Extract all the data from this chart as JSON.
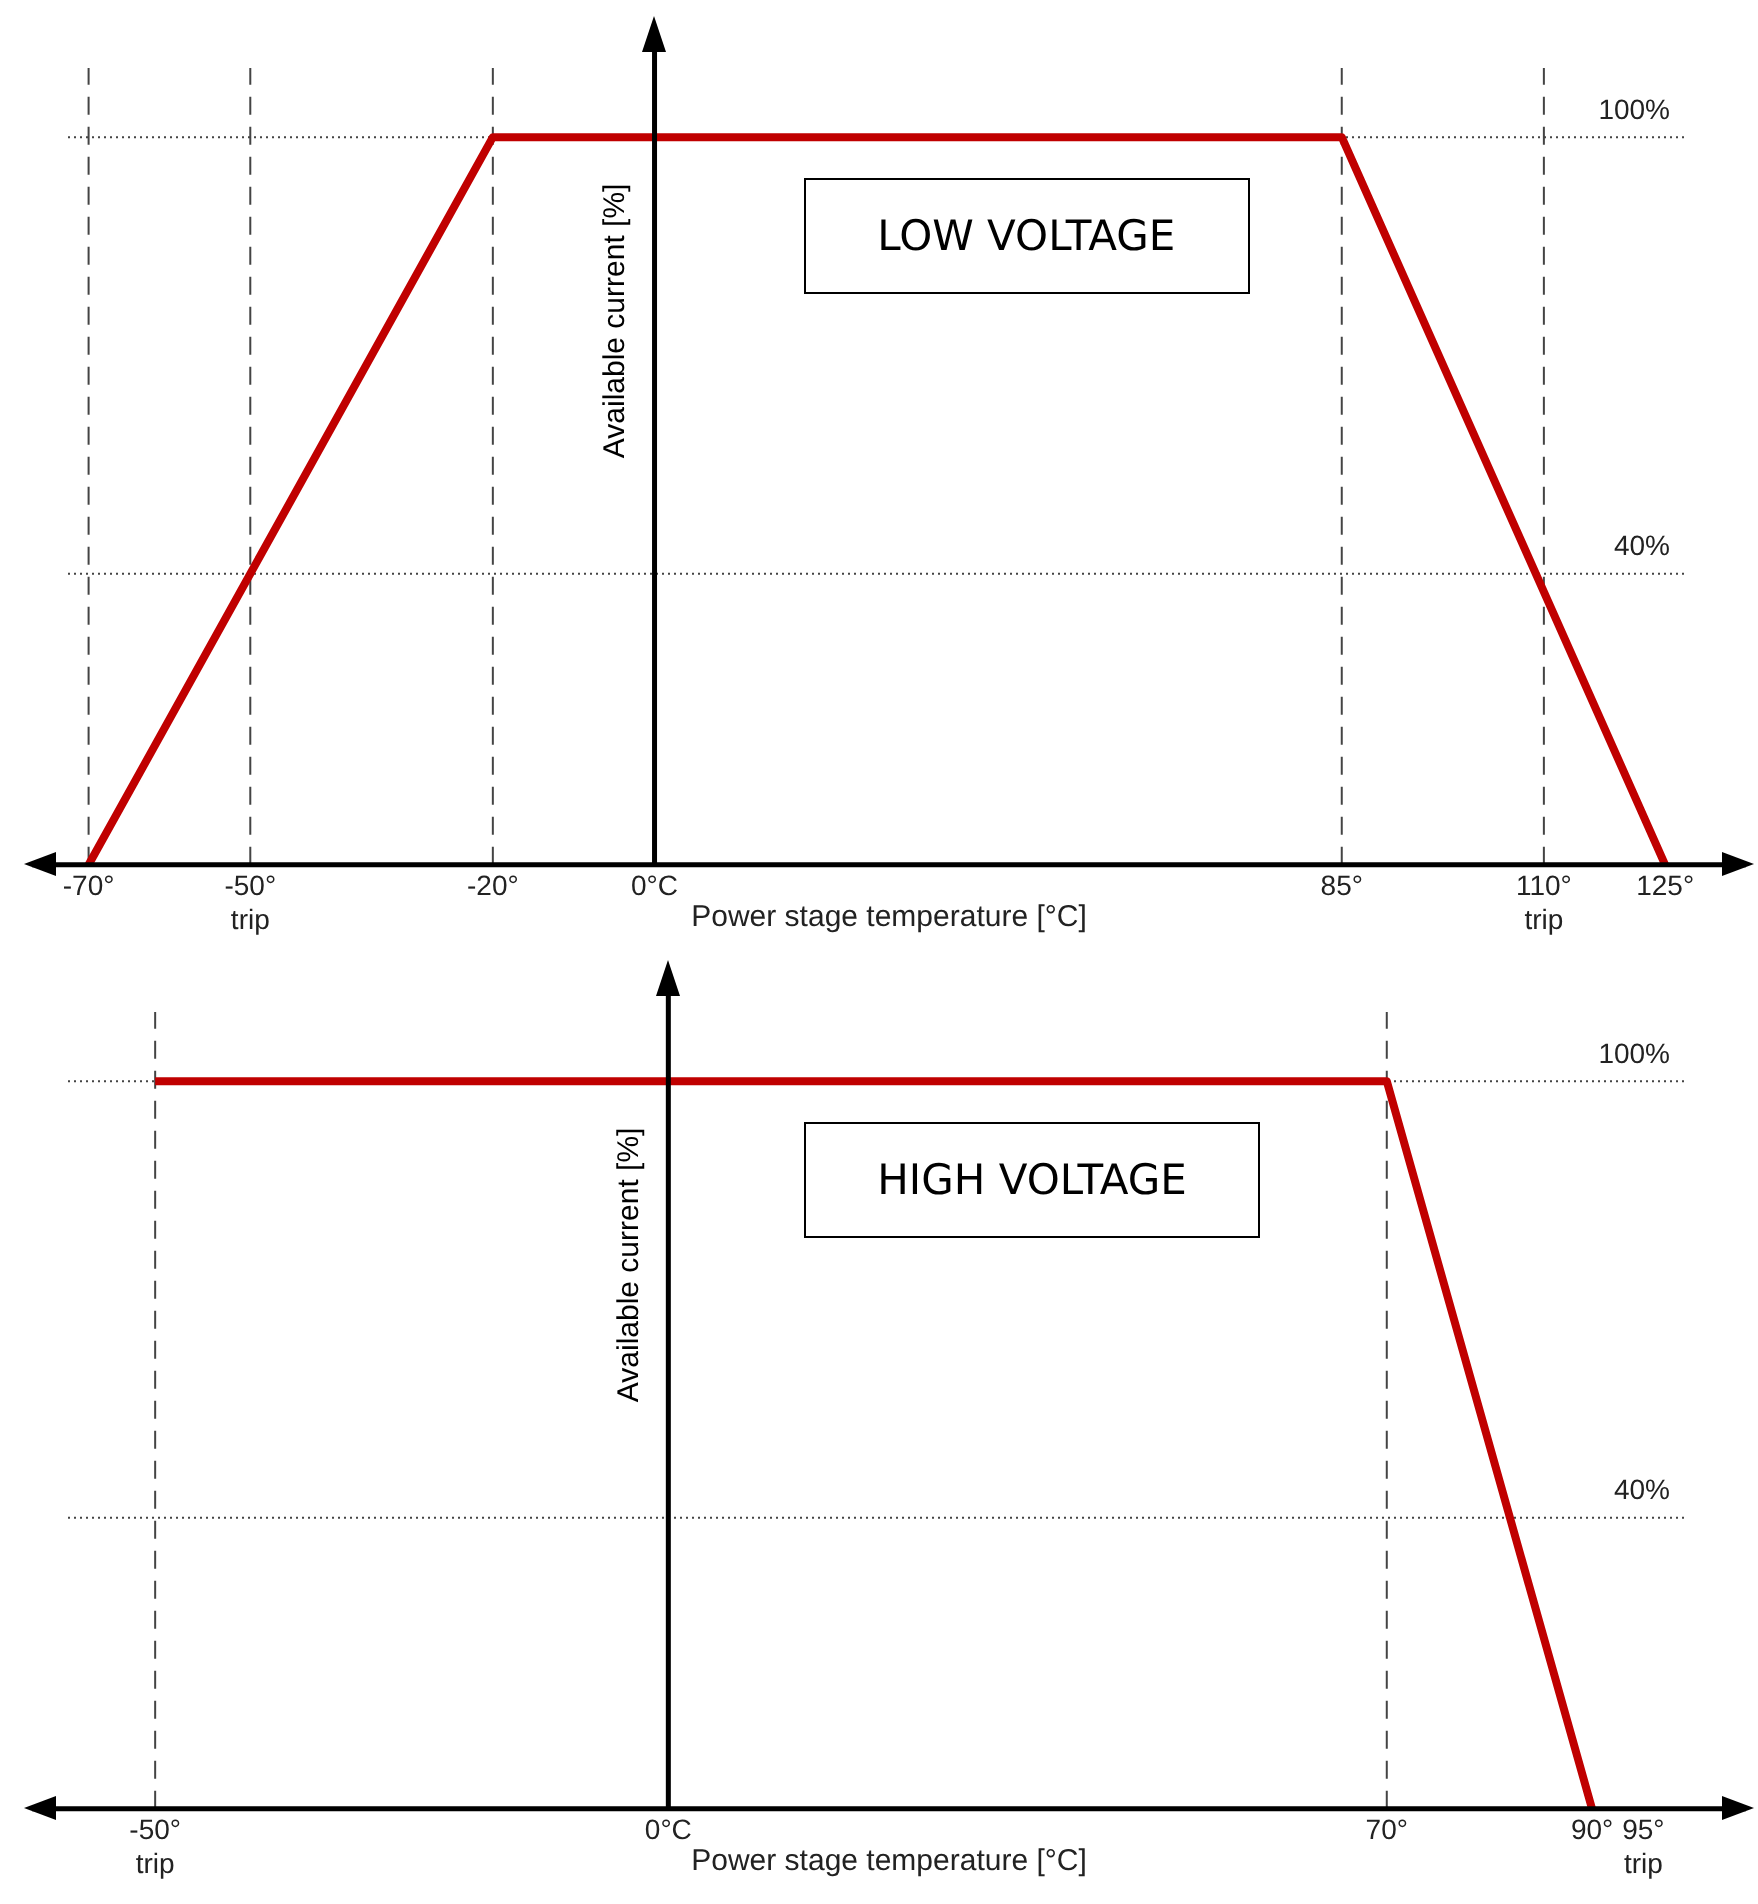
{
  "chart_data": [
    {
      "type": "line",
      "title": "LOW VOLTAGE",
      "xlabel": "Power stage temperature [°C]",
      "ylabel": "Available current [%]",
      "series": [
        {
          "color": "#c00000",
          "x": [
            -70,
            -20,
            85,
            125
          ],
          "values": [
            0,
            100,
            100,
            0
          ]
        }
      ],
      "xlim": [
        -77,
        135
      ],
      "xticks": [
        {
          "value": -70,
          "label": "-70°"
        },
        {
          "value": -50,
          "label": "-50°\ntrip"
        },
        {
          "value": -20,
          "label": "-20°"
        },
        {
          "value": 0,
          "label": "0°C"
        },
        {
          "value": 85,
          "label": "85°"
        },
        {
          "value": 110,
          "label": "110°\ntrip"
        },
        {
          "value": 125,
          "label": "125°"
        }
      ],
      "ylim": [
        0,
        115
      ],
      "tick_labels": "x",
      "grid": false,
      "legend": false,
      "marker": "none",
      "line_style": "solid",
      "ref_lines": [
        {
          "axis": "y",
          "value": 100,
          "label": "100%",
          "line_style": "dotted"
        },
        {
          "axis": "y",
          "value": 40,
          "label": "40%",
          "line_style": "dotted"
        },
        {
          "axis": "x",
          "value": -70,
          "line_style": "dashed"
        },
        {
          "axis": "x",
          "value": -50,
          "line_style": "dashed"
        },
        {
          "axis": "x",
          "value": -20,
          "line_style": "dashed"
        },
        {
          "axis": "x",
          "value": 85,
          "line_style": "dashed"
        },
        {
          "axis": "x",
          "value": 110,
          "line_style": "dashed"
        }
      ]
    },
    {
      "type": "line",
      "title": "HIGH VOLTAGE",
      "xlabel": "Power stage temperature [°C]",
      "ylabel": "Available current [%]",
      "series": [
        {
          "color": "#c00000",
          "x": [
            -50,
            70,
            90
          ],
          "values": [
            100,
            100,
            0
          ]
        }
      ],
      "xlim": [
        -62,
        105
      ],
      "xticks": [
        {
          "value": -50,
          "label": "-50°\ntrip"
        },
        {
          "value": 0,
          "label": "0°C"
        },
        {
          "value": 70,
          "label": "70°"
        },
        {
          "value": 90,
          "label": "90°"
        },
        {
          "value": 95,
          "label": "95°\ntrip"
        }
      ],
      "ylim": [
        0,
        115
      ],
      "tick_labels": "x",
      "grid": false,
      "legend": false,
      "marker": "none",
      "line_style": "solid",
      "ref_lines": [
        {
          "axis": "y",
          "value": 100,
          "label": "100%",
          "line_style": "dotted"
        },
        {
          "axis": "y",
          "value": 40,
          "label": "40%",
          "line_style": "dotted"
        },
        {
          "axis": "x",
          "value": -50,
          "line_style": "dashed"
        },
        {
          "axis": "x",
          "value": 70,
          "line_style": "dashed"
        }
      ]
    }
  ]
}
